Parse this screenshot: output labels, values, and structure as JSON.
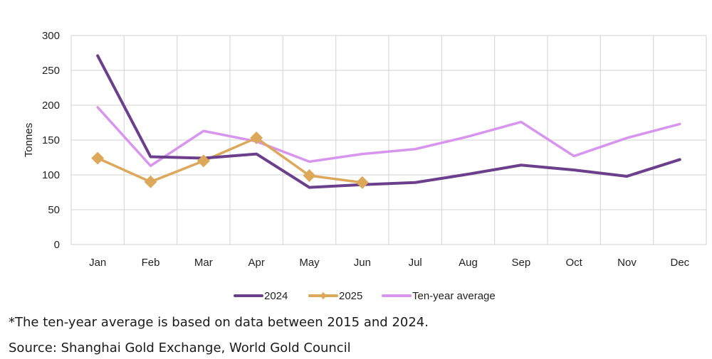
{
  "chart_data": {
    "type": "line",
    "title": "",
    "xlabel": "",
    "ylabel": "Tonnes",
    "ylim": [
      0,
      300
    ],
    "yticks": [
      0,
      50,
      100,
      150,
      200,
      250,
      300
    ],
    "grid": true,
    "legend_position": "bottom-center",
    "categories": [
      "Jan",
      "Feb",
      "Mar",
      "Apr",
      "May",
      "Jun",
      "Jul",
      "Aug",
      "Sep",
      "Oct",
      "Nov",
      "Dec"
    ],
    "series": [
      {
        "name": "2024",
        "color": "#6b3f8c",
        "marker": "none",
        "values": [
          271,
          126,
          124,
          130,
          82,
          86,
          89,
          101,
          114,
          107,
          98,
          122
        ]
      },
      {
        "name": "2025",
        "color": "#dca85a",
        "marker": "diamond",
        "values": [
          124,
          90,
          120,
          153,
          99,
          89,
          null,
          null,
          null,
          null,
          null,
          null
        ]
      },
      {
        "name": "Ten-year average",
        "color": "#d795ee",
        "marker": "none",
        "values": [
          197,
          113,
          163,
          148,
          119,
          130,
          137,
          155,
          176,
          127,
          153,
          173
        ]
      }
    ]
  },
  "footnotes": {
    "note": "*The ten-year average is based on data between 2015 and 2024.",
    "source": "Source: Shanghai Gold Exchange, World Gold Council"
  }
}
